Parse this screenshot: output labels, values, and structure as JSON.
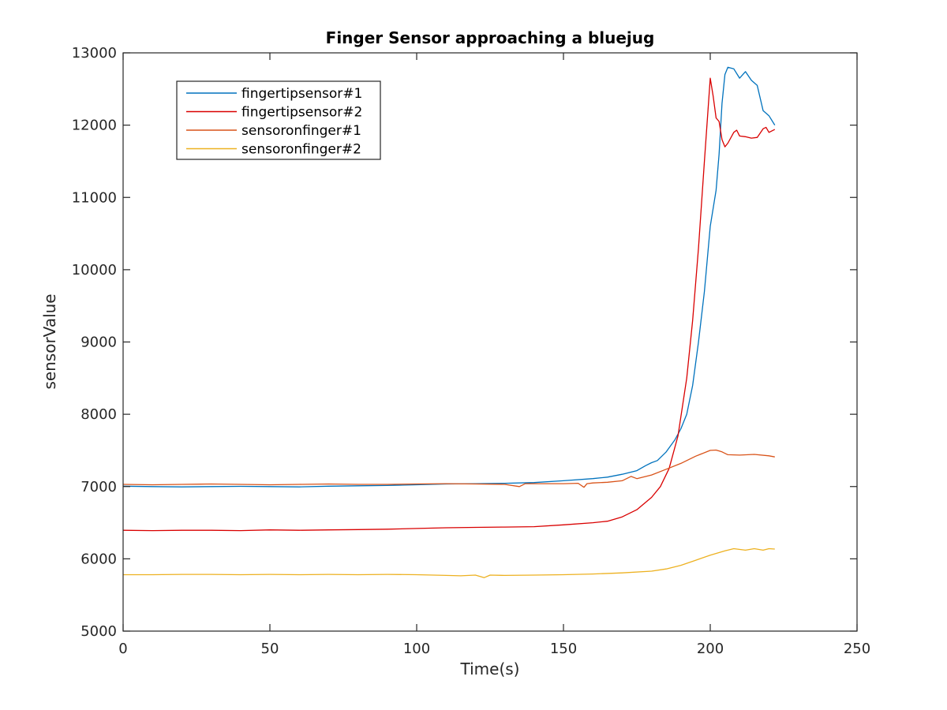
{
  "chart_data": {
    "type": "line",
    "title": "Finger Sensor approaching a bluejug",
    "xlabel": "Time(s)",
    "ylabel": "sensorValue",
    "xlim": [
      0,
      250
    ],
    "ylim": [
      5000,
      13000
    ],
    "xticks": [
      0,
      50,
      100,
      150,
      200,
      250
    ],
    "yticks": [
      5000,
      6000,
      7000,
      8000,
      9000,
      10000,
      11000,
      12000,
      13000
    ],
    "grid": false,
    "legend_position": "top-left",
    "series": [
      {
        "name": "fingertipsensor#1",
        "color": "#0072BD",
        "points": [
          [
            0,
            7005
          ],
          [
            10,
            7000
          ],
          [
            20,
            6995
          ],
          [
            30,
            7000
          ],
          [
            40,
            7003
          ],
          [
            50,
            7000
          ],
          [
            60,
            6995
          ],
          [
            70,
            7005
          ],
          [
            80,
            7010
          ],
          [
            90,
            7015
          ],
          [
            100,
            7025
          ],
          [
            110,
            7035
          ],
          [
            120,
            7040
          ],
          [
            130,
            7045
          ],
          [
            140,
            7055
          ],
          [
            150,
            7080
          ],
          [
            160,
            7110
          ],
          [
            165,
            7130
          ],
          [
            170,
            7170
          ],
          [
            175,
            7220
          ],
          [
            178,
            7290
          ],
          [
            180,
            7330
          ],
          [
            182,
            7360
          ],
          [
            185,
            7480
          ],
          [
            188,
            7650
          ],
          [
            190,
            7800
          ],
          [
            192,
            8000
          ],
          [
            194,
            8400
          ],
          [
            196,
            9000
          ],
          [
            198,
            9700
          ],
          [
            200,
            10600
          ],
          [
            202,
            11100
          ],
          [
            203,
            11600
          ],
          [
            204,
            12300
          ],
          [
            205,
            12700
          ],
          [
            206,
            12800
          ],
          [
            208,
            12780
          ],
          [
            210,
            12650
          ],
          [
            212,
            12740
          ],
          [
            214,
            12620
          ],
          [
            216,
            12550
          ],
          [
            218,
            12200
          ],
          [
            220,
            12130
          ],
          [
            222,
            12000
          ]
        ]
      },
      {
        "name": "fingertipsensor#2",
        "color": "#D90000",
        "points": [
          [
            0,
            6395
          ],
          [
            10,
            6390
          ],
          [
            20,
            6395
          ],
          [
            30,
            6395
          ],
          [
            40,
            6390
          ],
          [
            50,
            6400
          ],
          [
            60,
            6395
          ],
          [
            70,
            6400
          ],
          [
            80,
            6405
          ],
          [
            90,
            6410
          ],
          [
            100,
            6420
          ],
          [
            110,
            6430
          ],
          [
            120,
            6435
          ],
          [
            130,
            6440
          ],
          [
            140,
            6445
          ],
          [
            150,
            6470
          ],
          [
            160,
            6500
          ],
          [
            165,
            6520
          ],
          [
            170,
            6580
          ],
          [
            175,
            6680
          ],
          [
            180,
            6850
          ],
          [
            183,
            7000
          ],
          [
            186,
            7250
          ],
          [
            189,
            7700
          ],
          [
            192,
            8500
          ],
          [
            194,
            9300
          ],
          [
            196,
            10300
          ],
          [
            198,
            11500
          ],
          [
            200,
            12650
          ],
          [
            201,
            12400
          ],
          [
            202,
            12100
          ],
          [
            203,
            12050
          ],
          [
            204,
            11800
          ],
          [
            205,
            11700
          ],
          [
            206,
            11750
          ],
          [
            208,
            11900
          ],
          [
            209,
            11930
          ],
          [
            210,
            11850
          ],
          [
            212,
            11840
          ],
          [
            214,
            11820
          ],
          [
            216,
            11830
          ],
          [
            218,
            11950
          ],
          [
            219,
            11970
          ],
          [
            220,
            11900
          ],
          [
            222,
            11940
          ]
        ]
      },
      {
        "name": "sensoronfinger#1",
        "color": "#D95319",
        "points": [
          [
            0,
            7030
          ],
          [
            10,
            7025
          ],
          [
            20,
            7030
          ],
          [
            30,
            7035
          ],
          [
            40,
            7030
          ],
          [
            50,
            7025
          ],
          [
            60,
            7030
          ],
          [
            70,
            7035
          ],
          [
            80,
            7030
          ],
          [
            90,
            7030
          ],
          [
            100,
            7035
          ],
          [
            110,
            7040
          ],
          [
            120,
            7035
          ],
          [
            130,
            7030
          ],
          [
            135,
            7000
          ],
          [
            137,
            7040
          ],
          [
            140,
            7040
          ],
          [
            150,
            7040
          ],
          [
            155,
            7045
          ],
          [
            157,
            6990
          ],
          [
            158,
            7040
          ],
          [
            160,
            7050
          ],
          [
            165,
            7060
          ],
          [
            170,
            7080
          ],
          [
            173,
            7140
          ],
          [
            175,
            7110
          ],
          [
            180,
            7160
          ],
          [
            185,
            7240
          ],
          [
            190,
            7320
          ],
          [
            195,
            7420
          ],
          [
            200,
            7500
          ],
          [
            202,
            7505
          ],
          [
            204,
            7480
          ],
          [
            206,
            7440
          ],
          [
            210,
            7435
          ],
          [
            215,
            7445
          ],
          [
            220,
            7425
          ],
          [
            222,
            7410
          ]
        ]
      },
      {
        "name": "sensoronfinger#2",
        "color": "#EDB120",
        "points": [
          [
            0,
            5780
          ],
          [
            10,
            5780
          ],
          [
            20,
            5785
          ],
          [
            30,
            5785
          ],
          [
            40,
            5780
          ],
          [
            50,
            5785
          ],
          [
            60,
            5780
          ],
          [
            70,
            5785
          ],
          [
            80,
            5780
          ],
          [
            90,
            5785
          ],
          [
            100,
            5780
          ],
          [
            110,
            5770
          ],
          [
            115,
            5765
          ],
          [
            120,
            5775
          ],
          [
            123,
            5740
          ],
          [
            125,
            5775
          ],
          [
            130,
            5770
          ],
          [
            140,
            5775
          ],
          [
            150,
            5780
          ],
          [
            160,
            5790
          ],
          [
            170,
            5805
          ],
          [
            180,
            5830
          ],
          [
            185,
            5860
          ],
          [
            190,
            5910
          ],
          [
            195,
            5980
          ],
          [
            200,
            6050
          ],
          [
            205,
            6110
          ],
          [
            208,
            6140
          ],
          [
            212,
            6120
          ],
          [
            215,
            6140
          ],
          [
            218,
            6120
          ],
          [
            220,
            6140
          ],
          [
            222,
            6135
          ]
        ]
      }
    ]
  }
}
